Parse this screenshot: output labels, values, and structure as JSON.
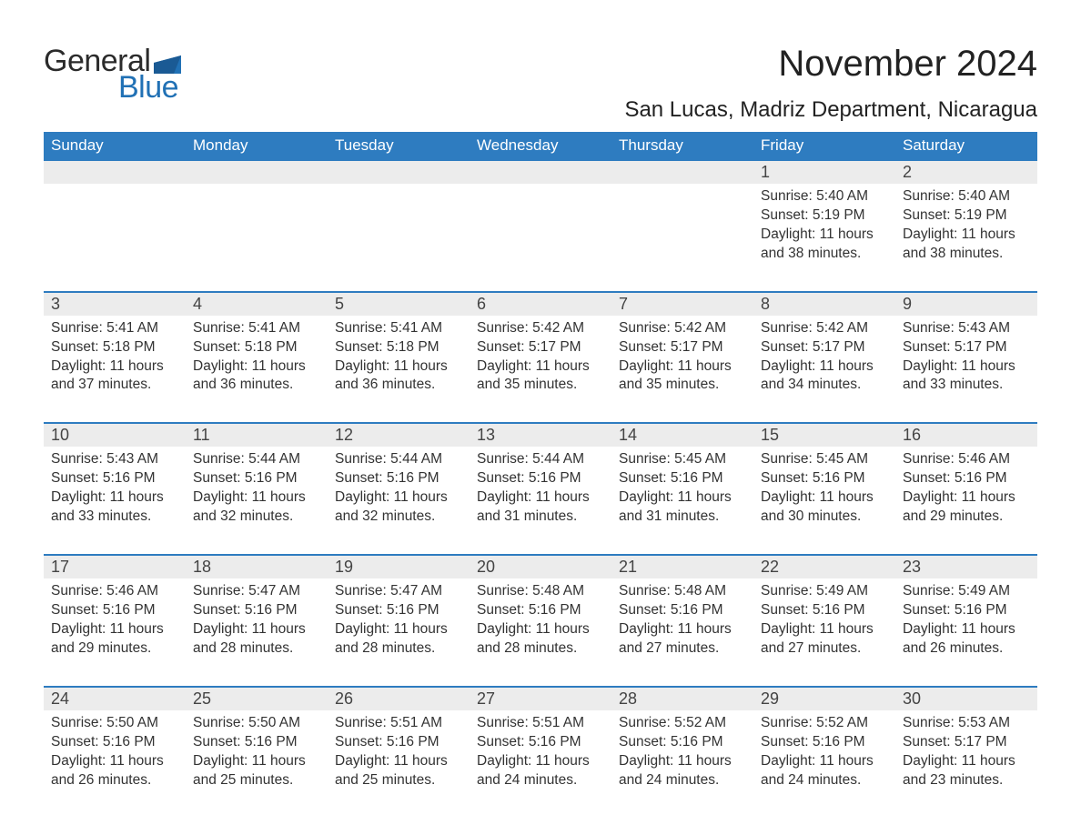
{
  "logo": {
    "text1": "General",
    "text2": "Blue",
    "flag_color": "#2171b5"
  },
  "header": {
    "month": "November 2024",
    "location": "San Lucas, Madriz Department, Nicaragua"
  },
  "colors": {
    "header_bg": "#2e7cc0",
    "header_text": "#ffffff",
    "daynum_bg": "#ececec",
    "rule": "#2e7cc0",
    "body_text": "#333333",
    "page_bg": "#ffffff"
  },
  "fonts": {
    "month_size_pt": 30,
    "location_size_pt": 18,
    "header_size_pt": 13,
    "daynum_size_pt": 14,
    "body_size_pt": 12
  },
  "days": [
    "Sunday",
    "Monday",
    "Tuesday",
    "Wednesday",
    "Thursday",
    "Friday",
    "Saturday"
  ],
  "weeks": [
    [
      null,
      null,
      null,
      null,
      null,
      {
        "n": "1",
        "sunrise": "Sunrise: 5:40 AM",
        "sunset": "Sunset: 5:19 PM",
        "daylight": "Daylight: 11 hours and 38 minutes."
      },
      {
        "n": "2",
        "sunrise": "Sunrise: 5:40 AM",
        "sunset": "Sunset: 5:19 PM",
        "daylight": "Daylight: 11 hours and 38 minutes."
      }
    ],
    [
      {
        "n": "3",
        "sunrise": "Sunrise: 5:41 AM",
        "sunset": "Sunset: 5:18 PM",
        "daylight": "Daylight: 11 hours and 37 minutes."
      },
      {
        "n": "4",
        "sunrise": "Sunrise: 5:41 AM",
        "sunset": "Sunset: 5:18 PM",
        "daylight": "Daylight: 11 hours and 36 minutes."
      },
      {
        "n": "5",
        "sunrise": "Sunrise: 5:41 AM",
        "sunset": "Sunset: 5:18 PM",
        "daylight": "Daylight: 11 hours and 36 minutes."
      },
      {
        "n": "6",
        "sunrise": "Sunrise: 5:42 AM",
        "sunset": "Sunset: 5:17 PM",
        "daylight": "Daylight: 11 hours and 35 minutes."
      },
      {
        "n": "7",
        "sunrise": "Sunrise: 5:42 AM",
        "sunset": "Sunset: 5:17 PM",
        "daylight": "Daylight: 11 hours and 35 minutes."
      },
      {
        "n": "8",
        "sunrise": "Sunrise: 5:42 AM",
        "sunset": "Sunset: 5:17 PM",
        "daylight": "Daylight: 11 hours and 34 minutes."
      },
      {
        "n": "9",
        "sunrise": "Sunrise: 5:43 AM",
        "sunset": "Sunset: 5:17 PM",
        "daylight": "Daylight: 11 hours and 33 minutes."
      }
    ],
    [
      {
        "n": "10",
        "sunrise": "Sunrise: 5:43 AM",
        "sunset": "Sunset: 5:16 PM",
        "daylight": "Daylight: 11 hours and 33 minutes."
      },
      {
        "n": "11",
        "sunrise": "Sunrise: 5:44 AM",
        "sunset": "Sunset: 5:16 PM",
        "daylight": "Daylight: 11 hours and 32 minutes."
      },
      {
        "n": "12",
        "sunrise": "Sunrise: 5:44 AM",
        "sunset": "Sunset: 5:16 PM",
        "daylight": "Daylight: 11 hours and 32 minutes."
      },
      {
        "n": "13",
        "sunrise": "Sunrise: 5:44 AM",
        "sunset": "Sunset: 5:16 PM",
        "daylight": "Daylight: 11 hours and 31 minutes."
      },
      {
        "n": "14",
        "sunrise": "Sunrise: 5:45 AM",
        "sunset": "Sunset: 5:16 PM",
        "daylight": "Daylight: 11 hours and 31 minutes."
      },
      {
        "n": "15",
        "sunrise": "Sunrise: 5:45 AM",
        "sunset": "Sunset: 5:16 PM",
        "daylight": "Daylight: 11 hours and 30 minutes."
      },
      {
        "n": "16",
        "sunrise": "Sunrise: 5:46 AM",
        "sunset": "Sunset: 5:16 PM",
        "daylight": "Daylight: 11 hours and 29 minutes."
      }
    ],
    [
      {
        "n": "17",
        "sunrise": "Sunrise: 5:46 AM",
        "sunset": "Sunset: 5:16 PM",
        "daylight": "Daylight: 11 hours and 29 minutes."
      },
      {
        "n": "18",
        "sunrise": "Sunrise: 5:47 AM",
        "sunset": "Sunset: 5:16 PM",
        "daylight": "Daylight: 11 hours and 28 minutes."
      },
      {
        "n": "19",
        "sunrise": "Sunrise: 5:47 AM",
        "sunset": "Sunset: 5:16 PM",
        "daylight": "Daylight: 11 hours and 28 minutes."
      },
      {
        "n": "20",
        "sunrise": "Sunrise: 5:48 AM",
        "sunset": "Sunset: 5:16 PM",
        "daylight": "Daylight: 11 hours and 28 minutes."
      },
      {
        "n": "21",
        "sunrise": "Sunrise: 5:48 AM",
        "sunset": "Sunset: 5:16 PM",
        "daylight": "Daylight: 11 hours and 27 minutes."
      },
      {
        "n": "22",
        "sunrise": "Sunrise: 5:49 AM",
        "sunset": "Sunset: 5:16 PM",
        "daylight": "Daylight: 11 hours and 27 minutes."
      },
      {
        "n": "23",
        "sunrise": "Sunrise: 5:49 AM",
        "sunset": "Sunset: 5:16 PM",
        "daylight": "Daylight: 11 hours and 26 minutes."
      }
    ],
    [
      {
        "n": "24",
        "sunrise": "Sunrise: 5:50 AM",
        "sunset": "Sunset: 5:16 PM",
        "daylight": "Daylight: 11 hours and 26 minutes."
      },
      {
        "n": "25",
        "sunrise": "Sunrise: 5:50 AM",
        "sunset": "Sunset: 5:16 PM",
        "daylight": "Daylight: 11 hours and 25 minutes."
      },
      {
        "n": "26",
        "sunrise": "Sunrise: 5:51 AM",
        "sunset": "Sunset: 5:16 PM",
        "daylight": "Daylight: 11 hours and 25 minutes."
      },
      {
        "n": "27",
        "sunrise": "Sunrise: 5:51 AM",
        "sunset": "Sunset: 5:16 PM",
        "daylight": "Daylight: 11 hours and 24 minutes."
      },
      {
        "n": "28",
        "sunrise": "Sunrise: 5:52 AM",
        "sunset": "Sunset: 5:16 PM",
        "daylight": "Daylight: 11 hours and 24 minutes."
      },
      {
        "n": "29",
        "sunrise": "Sunrise: 5:52 AM",
        "sunset": "Sunset: 5:16 PM",
        "daylight": "Daylight: 11 hours and 24 minutes."
      },
      {
        "n": "30",
        "sunrise": "Sunrise: 5:53 AM",
        "sunset": "Sunset: 5:17 PM",
        "daylight": "Daylight: 11 hours and 23 minutes."
      }
    ]
  ]
}
